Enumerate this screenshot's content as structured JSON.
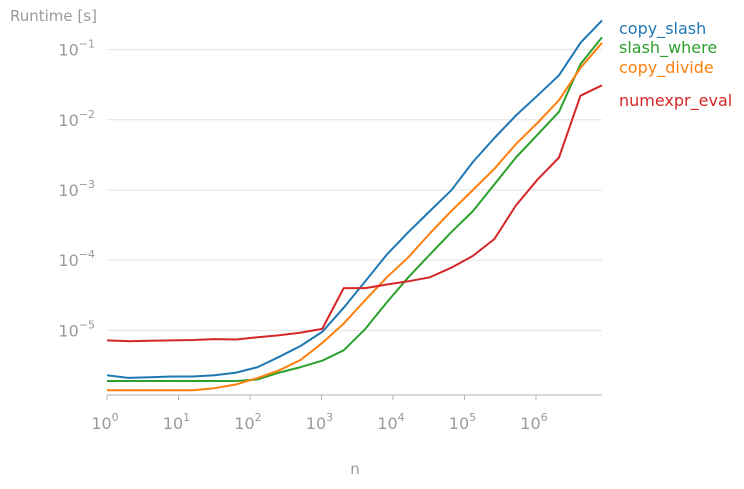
{
  "chart_data": {
    "type": "line",
    "title": "",
    "ylabel": "Runtime [s]",
    "xlabel": "n",
    "x_scale": "log",
    "y_scale": "log",
    "xlim": [
      1,
      8388608
    ],
    "ylim": [
      1.2e-06,
      0.19
    ],
    "grid": {
      "x": false,
      "y": true
    },
    "legend_position": "right",
    "x_ticks": [
      {
        "value": 1,
        "label": "10",
        "exp": "0"
      },
      {
        "value": 10,
        "label": "10",
        "exp": "1"
      },
      {
        "value": 100,
        "label": "10",
        "exp": "2"
      },
      {
        "value": 1000,
        "label": "10",
        "exp": "3"
      },
      {
        "value": 10000,
        "label": "10",
        "exp": "4"
      },
      {
        "value": 100000,
        "label": "10",
        "exp": "5"
      },
      {
        "value": 1000000,
        "label": "10",
        "exp": "6"
      }
    ],
    "y_ticks": [
      {
        "value": 1e-05,
        "label": "10",
        "exp": "−5"
      },
      {
        "value": 0.0001,
        "label": "10",
        "exp": "−4"
      },
      {
        "value": 0.001,
        "label": "10",
        "exp": "−3"
      },
      {
        "value": 0.01,
        "label": "10",
        "exp": "−2"
      },
      {
        "value": 0.1,
        "label": "10",
        "exp": "−1"
      }
    ],
    "x": [
      1,
      2,
      4,
      8,
      16,
      32,
      64,
      128,
      256,
      512,
      1024,
      2048,
      4096,
      8192,
      16384,
      32768,
      65536,
      131072,
      262144,
      524288,
      1048576,
      2097152,
      4194304,
      8388608
    ],
    "series": [
      {
        "name": "copy_slash",
        "color": "#1f77b4",
        "values": [
          2.3e-06,
          2.1e-06,
          2.15e-06,
          2.2e-06,
          2.2e-06,
          2.3e-06,
          2.5e-06,
          3e-06,
          4.2e-06,
          6e-06,
          9.5e-06,
          2.1e-05,
          5e-05,
          0.00012,
          0.00025,
          0.0005,
          0.00099,
          0.0025,
          0.0055,
          0.0115,
          0.022,
          0.043,
          0.125,
          0.26
        ]
      },
      {
        "name": "slash_where",
        "color": "#2ca02c",
        "values": [
          1.9e-06,
          1.9e-06,
          1.9e-06,
          1.9e-06,
          1.9e-06,
          1.9e-06,
          1.9e-06,
          2e-06,
          2.5e-06,
          3e-06,
          3.7e-06,
          5.2e-06,
          1.05e-05,
          2.5e-05,
          5.7e-05,
          0.00012,
          0.00025,
          0.0005,
          0.0012,
          0.0029,
          0.0061,
          0.013,
          0.062,
          0.15
        ]
      },
      {
        "name": "copy_divide",
        "color": "#ff7f0e",
        "values": [
          1.4e-06,
          1.4e-06,
          1.4e-06,
          1.4e-06,
          1.4e-06,
          1.5e-06,
          1.7e-06,
          2.1e-06,
          2.7e-06,
          3.8e-06,
          6.6e-06,
          1.25e-05,
          2.7e-05,
          5.7e-05,
          0.00011,
          0.00024,
          0.0005,
          0.001,
          0.002,
          0.0045,
          0.009,
          0.019,
          0.055,
          0.125
        ]
      },
      {
        "name": "numexpr_eval",
        "color": "#d62728",
        "values": [
          7.2e-06,
          7e-06,
          7.1e-06,
          7.2e-06,
          7.3e-06,
          7.5e-06,
          7.4e-06,
          8e-06,
          8.5e-06,
          9.3e-06,
          1.05e-05,
          4e-05,
          4e-05,
          4.5e-05,
          5e-05,
          5.7e-05,
          7.8e-05,
          0.000115,
          0.0002,
          0.0006,
          0.0014,
          0.0029,
          0.022,
          0.031
        ]
      }
    ]
  }
}
